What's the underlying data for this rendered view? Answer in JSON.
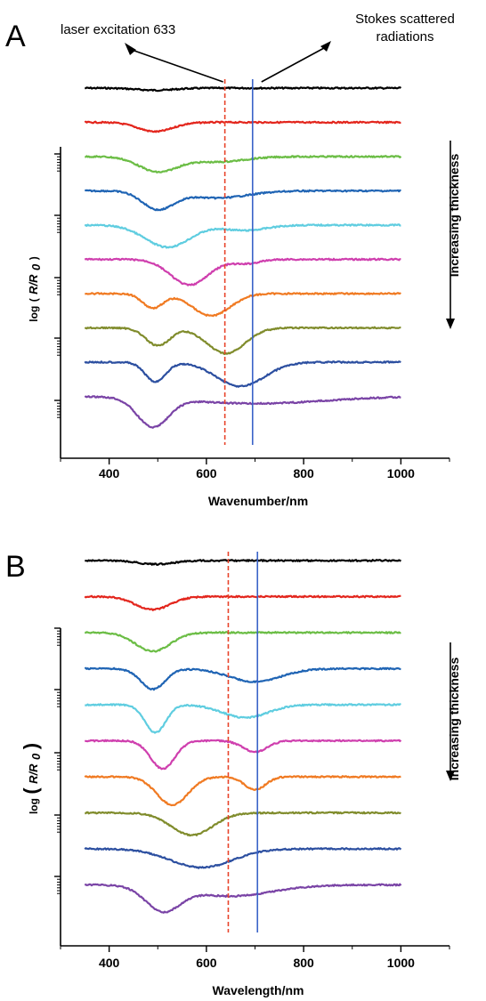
{
  "chart_data": [
    {
      "type": "line",
      "panel_label": "A",
      "xlabel": "Wavenumber/nm",
      "ylabel": {
        "prefix": "log",
        "ratio": "R/R",
        "sub": "0"
      },
      "xlim": [
        300,
        1100
      ],
      "xticks": [
        400,
        600,
        800,
        1000
      ],
      "x_range": [
        350,
        1000
      ],
      "y_scale": "log",
      "stacked_offsets": true,
      "side_label": "Increasing thickness",
      "vlines": [
        {
          "x": 638,
          "style": "dashed",
          "color": "#e8432a"
        },
        {
          "x": 695,
          "style": "solid",
          "color": "#3a63c8"
        }
      ],
      "annotations": [
        {
          "text": "laser excitation 633",
          "points_to_x": 638
        },
        {
          "text": [
            "Stokes scattered",
            "radiations"
          ],
          "points_to_x": 695
        }
      ],
      "series": [
        {
          "color": "#000000",
          "level": 0.0,
          "dips": [
            [
              495,
              0.06,
              55
            ]
          ],
          "slope": 0.06
        },
        {
          "color": "#e3261d",
          "level": 0.0,
          "dips": [
            [
              495,
              0.26,
              50
            ]
          ],
          "slope": 0.22
        },
        {
          "color": "#6bbd45",
          "level": 0.0,
          "dips": [
            [
              500,
              0.42,
              55
            ],
            [
              620,
              0.15,
              80
            ]
          ],
          "slope": 0.1
        },
        {
          "color": "#1f64b4",
          "level": 0.0,
          "dips": [
            [
              500,
              0.5,
              45
            ],
            [
              620,
              0.2,
              90
            ]
          ],
          "slope": 0.1
        },
        {
          "color": "#5fcde0",
          "level": 0.0,
          "dips": [
            [
              520,
              0.62,
              65
            ],
            [
              680,
              0.15,
              60
            ]
          ],
          "slope": 0.1
        },
        {
          "color": "#cf3fae",
          "level": 0.0,
          "dips": [
            [
              565,
              0.72,
              55
            ],
            [
              680,
              0.12,
              40
            ]
          ],
          "slope": 0.1
        },
        {
          "color": "#f07a22",
          "level": 0.0,
          "dips": [
            [
              490,
              0.4,
              30
            ],
            [
              610,
              0.62,
              55
            ]
          ],
          "slope": 0.05
        },
        {
          "color": "#808c2c",
          "level": 0.0,
          "dips": [
            [
              500,
              0.5,
              35
            ],
            [
              640,
              0.72,
              55
            ]
          ],
          "slope": 0.05
        },
        {
          "color": "#2c4fa0",
          "level": 0.0,
          "dips": [
            [
              495,
              0.55,
              30
            ],
            [
              670,
              0.68,
              70
            ]
          ],
          "slope": 0.05
        },
        {
          "color": "#7a44a6",
          "level": 0.0,
          "dips": [
            [
              490,
              0.8,
              45
            ],
            [
              700,
              0.2,
              200
            ]
          ],
          "slope": 0.05
        }
      ]
    },
    {
      "type": "line",
      "panel_label": "B",
      "xlabel": "Wavelength/nm",
      "ylabel": {
        "prefix": "log",
        "ratio": "R/R",
        "sub": "0"
      },
      "xlim": [
        300,
        1100
      ],
      "xticks": [
        400,
        600,
        800,
        1000
      ],
      "x_range": [
        350,
        1000
      ],
      "y_scale": "log",
      "stacked_offsets": true,
      "side_label": "Increasing thickness",
      "vlines": [
        {
          "x": 645,
          "style": "dashed",
          "color": "#e8432a"
        },
        {
          "x": 705,
          "style": "solid",
          "color": "#3a63c8"
        }
      ],
      "annotations": [],
      "series": [
        {
          "color": "#000000",
          "level": 0.0,
          "dips": [
            [
              495,
              0.1,
              50
            ]
          ],
          "slope": 0.06
        },
        {
          "color": "#e3261d",
          "level": 0.0,
          "dips": [
            [
              490,
              0.35,
              50
            ]
          ],
          "slope": 0.2
        },
        {
          "color": "#6bbd45",
          "level": 0.0,
          "dips": [
            [
              490,
              0.5,
              50
            ]
          ],
          "slope": 0.2
        },
        {
          "color": "#1f64b4",
          "level": 0.0,
          "dips": [
            [
              490,
              0.55,
              35
            ],
            [
              700,
              0.35,
              75
            ]
          ],
          "slope": 0.05
        },
        {
          "color": "#5fcde0",
          "level": 0.0,
          "dips": [
            [
              495,
              0.75,
              30
            ],
            [
              680,
              0.35,
              65
            ]
          ],
          "slope": 0.05
        },
        {
          "color": "#cf3fae",
          "level": 0.0,
          "dips": [
            [
              510,
              0.75,
              35
            ],
            [
              700,
              0.3,
              35
            ]
          ],
          "slope": 0.05
        },
        {
          "color": "#f07a22",
          "level": 0.0,
          "dips": [
            [
              530,
              0.75,
              45
            ],
            [
              700,
              0.35,
              30
            ]
          ],
          "slope": 0.05
        },
        {
          "color": "#808c2c",
          "level": 0.0,
          "dips": [
            [
              570,
              0.6,
              60
            ]
          ],
          "slope": 0.05
        },
        {
          "color": "#2c4fa0",
          "level": 0.0,
          "dips": [
            [
              590,
              0.5,
              90
            ]
          ],
          "slope": 0.05
        },
        {
          "color": "#7a44a6",
          "level": 0.0,
          "dips": [
            [
              510,
              0.65,
              50
            ],
            [
              650,
              0.3,
              120
            ]
          ],
          "slope": 0.05
        }
      ]
    }
  ]
}
